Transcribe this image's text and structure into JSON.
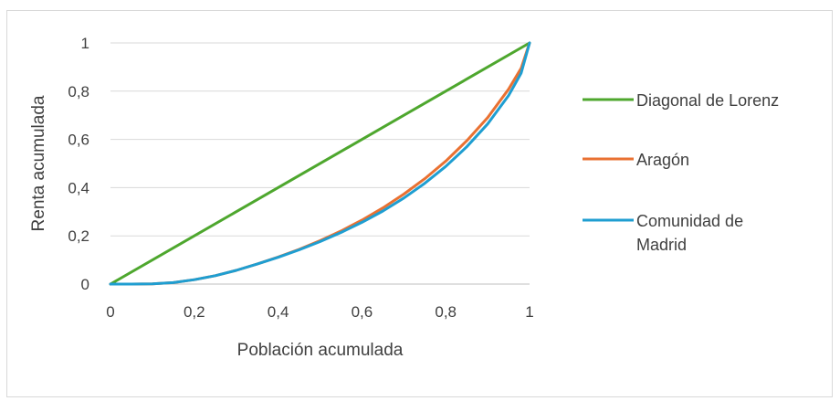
{
  "chart_data": {
    "type": "line",
    "title": "",
    "xlabel": "Población acumulada",
    "ylabel": "Renta acumulada",
    "xlim": [
      0,
      1
    ],
    "ylim": [
      0,
      1
    ],
    "x_ticks": [
      "0",
      "0,2",
      "0,4",
      "0,6",
      "0,8",
      "1"
    ],
    "y_ticks": [
      "0",
      "0,2",
      "0,4",
      "0,6",
      "0,8",
      "1"
    ],
    "grid": "horizontal",
    "legend_position": "right",
    "series": [
      {
        "name": "Diagonal de Lorenz",
        "color": "#4ea72e",
        "x": [
          0,
          1
        ],
        "y": [
          0,
          1
        ]
      },
      {
        "name": "Aragón",
        "color": "#e97132",
        "x": [
          0,
          0.05,
          0.1,
          0.15,
          0.2,
          0.25,
          0.3,
          0.35,
          0.4,
          0.45,
          0.5,
          0.55,
          0.6,
          0.65,
          0.7,
          0.75,
          0.8,
          0.85,
          0.9,
          0.95,
          0.98,
          1
        ],
        "y": [
          0,
          0,
          0.001,
          0.006,
          0.018,
          0.035,
          0.057,
          0.083,
          0.112,
          0.144,
          0.18,
          0.22,
          0.265,
          0.316,
          0.373,
          0.437,
          0.51,
          0.594,
          0.69,
          0.808,
          0.895,
          1
        ]
      },
      {
        "name": "Comunidad de Madrid",
        "color": "#1f9ed1",
        "legend_lines": [
          "Comunidad de",
          "Madrid"
        ],
        "x": [
          0,
          0.05,
          0.1,
          0.15,
          0.2,
          0.25,
          0.3,
          0.35,
          0.4,
          0.45,
          0.5,
          0.55,
          0.6,
          0.65,
          0.7,
          0.75,
          0.8,
          0.85,
          0.9,
          0.95,
          0.98,
          1
        ],
        "y": [
          0,
          0,
          0.001,
          0.006,
          0.018,
          0.035,
          0.057,
          0.083,
          0.111,
          0.142,
          0.176,
          0.214,
          0.256,
          0.303,
          0.357,
          0.418,
          0.488,
          0.569,
          0.664,
          0.782,
          0.875,
          1
        ]
      }
    ]
  }
}
